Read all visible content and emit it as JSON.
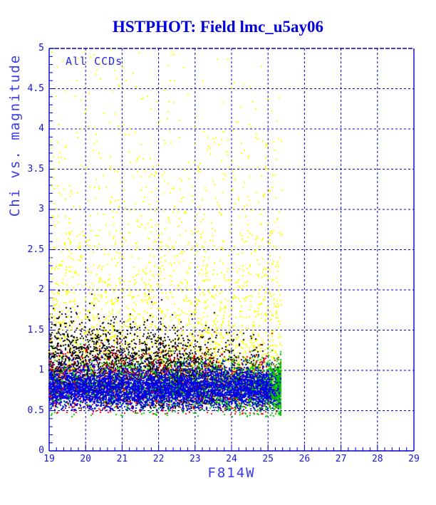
{
  "title": "HSTPHOT: Field lmc_u5ay06",
  "plot": {
    "annotation": "All CCDs",
    "xlabel": "F814W",
    "ylabel": "Chi vs. magnitude",
    "x_tick_labels": [
      "19",
      "20",
      "21",
      "22",
      "23",
      "24",
      "25",
      "26",
      "27",
      "28",
      "29"
    ],
    "y_tick_labels": [
      "0",
      "0.5",
      "1",
      "1.5",
      "2",
      "2.5",
      "3",
      "3.5",
      "4",
      "4.5",
      "5"
    ]
  },
  "colors": {
    "title": "#0000DD",
    "frame": "#0000CC",
    "grid": "#0000CC",
    "tick_label": "#1414E0",
    "axis_label": "#3A3AEE",
    "annotation": "#2626E6",
    "background": "#FFFFFF"
  },
  "chart_data": {
    "type": "scatter",
    "title": "HSTPHOT: Field lmc_u5ay06",
    "xlabel": "F814W",
    "ylabel": "Chi vs. magnitude",
    "annotation": "All CCDs",
    "xlim": [
      19,
      29
    ],
    "ylim": [
      0,
      5
    ],
    "x_major": 1.0,
    "x_minor": 0.2,
    "y_major": 0.5,
    "y_minor": 0.1,
    "grid": "dashed lines at every major tick, blue",
    "legend": "none; point color encodes CCD chip",
    "marker": "2x2 px square",
    "seed": 20011114,
    "description": "Quality plot of chi versus F814W magnitude for all detected stars on all CCDs. A dense locus of well-fit stars lies at chi 0.5-1.3 spanning magnitudes 19-25.4 (detection limit), while a sparser cloud of high-chi (poorly fit / crowded) yellow-flagged stars extends up to chi 5.",
    "series": [
      {
        "name": "ccd-yellow",
        "color": "#FFFF00",
        "count": 2600,
        "mag": {
          "dist": "uniform",
          "min": 19.0,
          "max": 25.38
        },
        "chi": {
          "dist": "exp",
          "min": 0.75,
          "scale": 1.15,
          "max": 5.0
        }
      },
      {
        "name": "ccd-black",
        "color": "#000000",
        "count": 2500,
        "mag": {
          "dist": "uniform",
          "min": 19.0,
          "max": 24.9,
          "fade_start": 23.5,
          "fade_keep": 0.4
        },
        "chi": {
          "dist": "normal",
          "mean": 0.97,
          "sd": 0.28,
          "min": 0.52,
          "max": 2.3,
          "slope_per_mag": -0.05,
          "ref_mag": 22
        }
      },
      {
        "name": "ccd-red",
        "color": "#E80000",
        "count": 1500,
        "mag": {
          "dist": "uniform",
          "min": 19.0,
          "max": 25.35,
          "fade_start": 25.0,
          "fade_keep": 0.55
        },
        "chi": {
          "dist": "normal",
          "mean": 0.82,
          "sd": 0.2,
          "min": 0.45,
          "max": 1.65
        }
      },
      {
        "name": "ccd-green",
        "color": "#00C400",
        "count": 2400,
        "mag": {
          "dist": "power_faint",
          "min": 19.0,
          "max": 25.35,
          "pow": 2.1
        },
        "chi": {
          "dist": "normal",
          "mean": 0.8,
          "sd": 0.17,
          "min": 0.42,
          "max": 1.35
        }
      },
      {
        "name": "ccd-blue",
        "color": "#0000EE",
        "count": 4300,
        "mag": {
          "dist": "uniform",
          "min": 19.0,
          "max": 25.35,
          "fade_start": 25.05,
          "fade_keep": 0.5
        },
        "chi": {
          "dist": "normal",
          "mean": 0.78,
          "sd": 0.13,
          "min": 0.5,
          "max": 1.3
        }
      }
    ]
  },
  "layout_hint": "single scatter panel, ticks inside on left and bottom axes only"
}
